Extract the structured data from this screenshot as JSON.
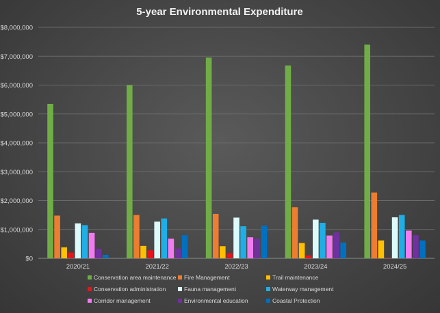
{
  "chart_data": {
    "type": "bar",
    "title": "5-year Environmental Expenditure",
    "xlabel": "",
    "ylabel": "",
    "categories": [
      "2020/21",
      "2021/22",
      "2022/23",
      "2023/24",
      "2024/25"
    ],
    "ylim": [
      0,
      8000000
    ],
    "yticks": [
      0,
      1000000,
      2000000,
      3000000,
      4000000,
      5000000,
      6000000,
      7000000,
      8000000
    ],
    "ytick_labels": [
      "$0",
      "$1,000,000",
      "$2,000,000",
      "$3,000,000",
      "$4,000,000",
      "$5,000,000",
      "$6,000,000",
      "$7,000,000",
      "$8,000,000"
    ],
    "grid": true,
    "legend_position": "bottom",
    "series": [
      {
        "name": "Conservation area maintenance",
        "color": "#70ad47",
        "values": [
          5350000,
          6000000,
          6950000,
          6680000,
          7400000
        ]
      },
      {
        "name": "Fire Management",
        "color": "#ed7d31",
        "values": [
          1480000,
          1500000,
          1540000,
          1770000,
          2280000
        ]
      },
      {
        "name": "Trail maintenance",
        "color": "#ffc000",
        "values": [
          380000,
          430000,
          420000,
          530000,
          620000
        ]
      },
      {
        "name": "Conservation administration",
        "color": "#e8141c",
        "values": [
          200000,
          280000,
          180000,
          100000,
          20000
        ]
      },
      {
        "name": "Fauna management",
        "color": "#ddfbfb",
        "values": [
          1210000,
          1270000,
          1410000,
          1340000,
          1420000
        ]
      },
      {
        "name": "Waterway management",
        "color": "#1faee5",
        "values": [
          1150000,
          1380000,
          1110000,
          1230000,
          1500000
        ]
      },
      {
        "name": "Corridor management",
        "color": "#f27bf0",
        "values": [
          880000,
          680000,
          730000,
          790000,
          960000
        ]
      },
      {
        "name": "Environmental education",
        "color": "#7030a0",
        "values": [
          330000,
          340000,
          680000,
          900000,
          800000
        ]
      },
      {
        "name": "Coastal Protection",
        "color": "#0070c0",
        "values": [
          120000,
          800000,
          1130000,
          550000,
          620000
        ]
      }
    ]
  }
}
